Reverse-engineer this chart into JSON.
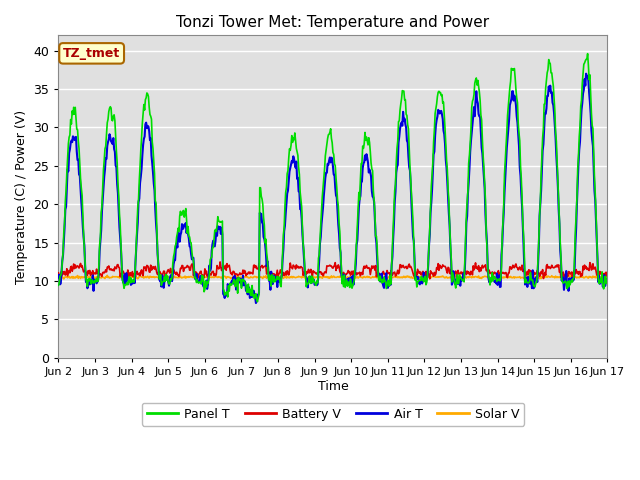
{
  "title": "Tonzi Tower Met: Temperature and Power",
  "xlabel": "Time",
  "ylabel": "Temperature (C) / Power (V)",
  "annotation": "TZ_tmet",
  "ylim": [
    0,
    42
  ],
  "yticks": [
    0,
    5,
    10,
    15,
    20,
    25,
    30,
    35,
    40
  ],
  "xtick_labels": [
    "Jun 2",
    "Jun 3",
    "Jun 4",
    "Jun 5",
    "Jun 6",
    "Jun 7",
    "Jun 8",
    "Jun 9",
    "Jun 10",
    "Jun 11",
    "Jun 12",
    "Jun 13",
    "Jun 14",
    "Jun 15",
    "Jun 16",
    "Jun 17"
  ],
  "xtick_positions": [
    0,
    24,
    48,
    72,
    96,
    120,
    144,
    168,
    192,
    216,
    240,
    264,
    288,
    312,
    336,
    360
  ],
  "background_color": "#e0e0e0",
  "panel_t_color": "#00dd00",
  "battery_v_color": "#dd0000",
  "air_t_color": "#0000dd",
  "solar_v_color": "#ffaa00",
  "legend_labels": [
    "Panel T",
    "Battery V",
    "Air T",
    "Solar V"
  ],
  "figsize": [
    6.4,
    4.8
  ],
  "dpi": 100
}
